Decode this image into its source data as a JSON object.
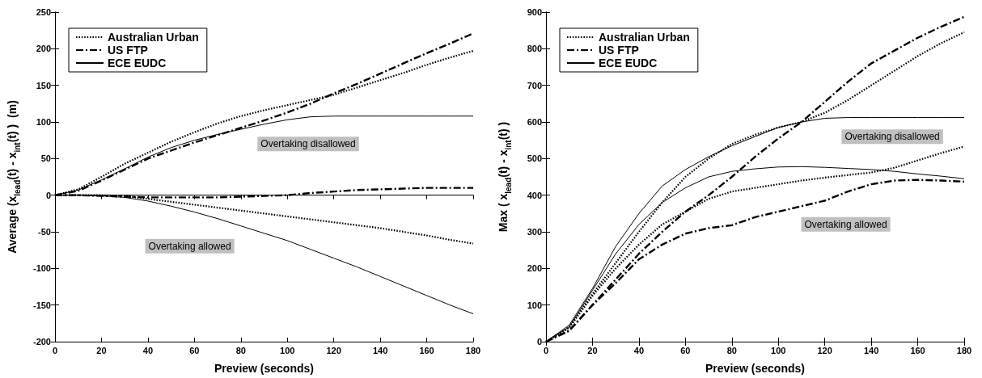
{
  "chart_data": [
    {
      "type": "line",
      "xlabel": "Preview (seconds)",
      "ylabel": "Average (x$_{lead}$(t) - x$_{int}$(t) )  (m)",
      "x": [
        0,
        10,
        20,
        30,
        40,
        50,
        60,
        70,
        80,
        90,
        100,
        110,
        120,
        130,
        140,
        150,
        160,
        170,
        180
      ],
      "xlim": [
        0,
        180
      ],
      "xticks": [
        0,
        20,
        40,
        60,
        80,
        100,
        120,
        140,
        160,
        180
      ],
      "ylim": [
        -200,
        250
      ],
      "yticks": [
        -200,
        -150,
        -100,
        -50,
        0,
        50,
        100,
        150,
        200,
        250
      ],
      "legend": "top left",
      "marker": "none",
      "annotations": [
        "Overtaking disallowed",
        "Overtaking allowed"
      ],
      "series": [
        {
          "name": "Australian Urban",
          "color": "#000000",
          "line_style": "dotted",
          "values": [
            0,
            8,
            25,
            43,
            58,
            73,
            86,
            98,
            108,
            116,
            123,
            130,
            137,
            147,
            157,
            167,
            178,
            188,
            197
          ]
        },
        {
          "name": "US FTP",
          "color": "#000000",
          "line_style": "dashed",
          "values": [
            0,
            6,
            20,
            35,
            50,
            61,
            72,
            82,
            92,
            102,
            113,
            125,
            139,
            152,
            166,
            180,
            194,
            207,
            221
          ]
        },
        {
          "name": "ECE EUDC",
          "color": "#000000",
          "line_style": "solid",
          "values": [
            0,
            7,
            21,
            36,
            52,
            65,
            75,
            83,
            90,
            97,
            103,
            107,
            108,
            108,
            108,
            108,
            108,
            108,
            108
          ]
        },
        {
          "color": "#000000",
          "line_style": "dotted",
          "values": [
            0,
            0,
            0,
            -1,
            -5,
            -9,
            -13,
            -17,
            -21,
            -25,
            -29,
            -33,
            -37,
            -41,
            -45,
            -50,
            -55,
            -61,
            -66
          ]
        },
        {
          "color": "#000000",
          "line_style": "dashed",
          "values": [
            0,
            0,
            -1,
            -2,
            -3,
            -3,
            -3,
            -3,
            -2,
            -1,
            0,
            3,
            5,
            7,
            8,
            9,
            10,
            10,
            10
          ]
        },
        {
          "color": "#000000",
          "line_style": "solid",
          "values": [
            0,
            0,
            -1,
            -3,
            -8,
            -15,
            -23,
            -32,
            -42,
            -52,
            -62,
            -74,
            -86,
            -98,
            -111,
            -124,
            -137,
            -150,
            -162
          ]
        }
      ]
    },
    {
      "type": "line",
      "xlabel": "Preview (seconds)",
      "ylabel": "Max ( x$_{lead}$(t) - x$_{int}$(t) )",
      "x": [
        0,
        10,
        20,
        30,
        40,
        50,
        60,
        70,
        80,
        90,
        100,
        110,
        120,
        130,
        140,
        150,
        160,
        170,
        180
      ],
      "xlim": [
        0,
        180
      ],
      "xticks": [
        0,
        20,
        40,
        60,
        80,
        100,
        120,
        140,
        160,
        180
      ],
      "ylim": [
        0,
        900
      ],
      "yticks": [
        0,
        100,
        200,
        300,
        400,
        500,
        600,
        700,
        800,
        900
      ],
      "legend": "top left",
      "marker": "none",
      "annotations": [
        "Overtaking disallowed",
        "Overtaking allowed"
      ],
      "series": [
        {
          "name": "Australian Urban",
          "color": "#000000",
          "line_style": "dotted",
          "values": [
            0,
            40,
            130,
            215,
            300,
            380,
            450,
            500,
            540,
            565,
            585,
            600,
            625,
            660,
            700,
            740,
            780,
            815,
            845
          ]
        },
        {
          "name": "US FTP",
          "color": "#000000",
          "line_style": "dashed",
          "values": [
            0,
            30,
            100,
            170,
            240,
            300,
            355,
            400,
            450,
            505,
            555,
            600,
            655,
            710,
            760,
            795,
            830,
            860,
            887
          ]
        },
        {
          "name": "ECE EUDC",
          "color": "#000000",
          "line_style": "solid",
          "values": [
            0,
            45,
            145,
            260,
            350,
            425,
            470,
            505,
            535,
            560,
            585,
            600,
            610,
            612,
            612,
            612,
            612,
            612,
            612
          ]
        },
        {
          "color": "#000000",
          "line_style": "dotted",
          "values": [
            0,
            38,
            125,
            200,
            265,
            320,
            355,
            390,
            410,
            420,
            430,
            440,
            448,
            455,
            462,
            475,
            495,
            515,
            533
          ]
        },
        {
          "color": "#000000",
          "line_style": "dashed",
          "values": [
            0,
            30,
            100,
            160,
            225,
            265,
            295,
            310,
            318,
            340,
            355,
            370,
            385,
            410,
            430,
            440,
            442,
            440,
            437
          ]
        },
        {
          "color": "#000000",
          "line_style": "solid",
          "values": [
            0,
            40,
            140,
            240,
            320,
            380,
            420,
            450,
            465,
            472,
            477,
            478,
            476,
            473,
            470,
            465,
            458,
            452,
            445
          ]
        }
      ]
    }
  ]
}
